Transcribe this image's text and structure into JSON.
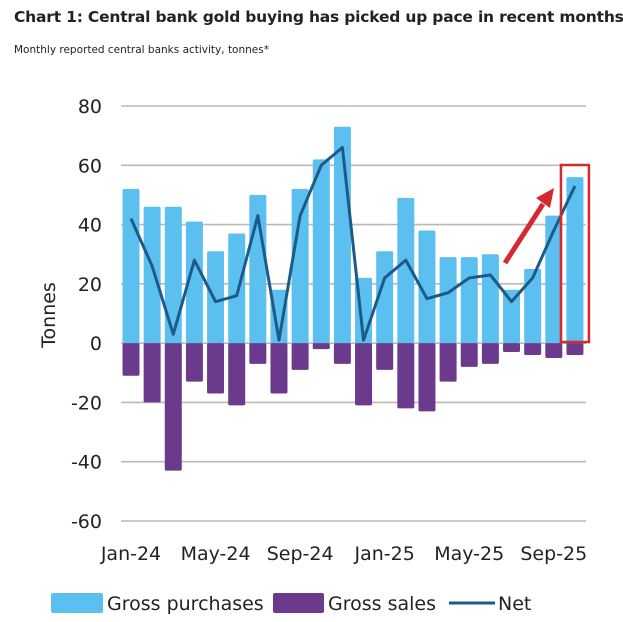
{
  "chart_data": {
    "type": "bar",
    "title": "Chart 1: Central bank gold buying has picked up pace in recent months",
    "subtitle": "Monthly reported central banks activity, tonnes*",
    "xlabel": "",
    "ylabel": "Tonnes",
    "ylim": [
      -60,
      80
    ],
    "yticks": [
      "80",
      "60",
      "40",
      "20",
      "0",
      "-20",
      "-40",
      "-60"
    ],
    "ytick_values": [
      80,
      60,
      40,
      20,
      0,
      -20,
      -40,
      -60
    ],
    "grid": true,
    "legend_placement": "bottom",
    "categories": [
      "Jan-24",
      "Feb-24",
      "Mar-24",
      "Apr-24",
      "May-24",
      "Jun-24",
      "Jul-24",
      "Aug-24",
      "Sep-24",
      "Oct-24",
      "Nov-24",
      "Dec-24",
      "Jan-25",
      "Feb-25",
      "Mar-25",
      "Apr-25",
      "May-25",
      "Jun-25",
      "Jul-25",
      "Aug-25",
      "Sep-25",
      "Oct-25"
    ],
    "xtick_labels": [
      "Jan-24",
      "May-24",
      "Sep-24",
      "Jan-25",
      "May-25",
      "Sep-25"
    ],
    "xtick_indices": [
      0,
      4,
      8,
      12,
      16,
      20
    ],
    "series": [
      {
        "name": "Gross purchases",
        "type": "bar",
        "color": "#5bc0ef",
        "values": [
          52,
          46,
          46,
          41,
          31,
          37,
          50,
          18,
          52,
          62,
          73,
          22,
          31,
          49,
          38,
          29,
          29,
          30,
          18,
          25,
          43,
          56
        ]
      },
      {
        "name": "Gross sales",
        "type": "bar",
        "color": "#6c3a8c",
        "values": [
          -11,
          -20,
          -43,
          -13,
          -17,
          -21,
          -7,
          -17,
          -9,
          -2,
          -7,
          -21,
          -9,
          -22,
          -23,
          -13,
          -8,
          -7,
          -3,
          -4,
          -5,
          -4
        ]
      },
      {
        "name": "Net",
        "type": "line",
        "color": "#1d5a8a",
        "values": [
          42,
          26,
          3,
          28,
          14,
          16,
          43,
          1,
          43,
          60,
          66,
          1,
          22,
          28,
          15,
          17,
          22,
          23,
          14,
          22,
          38,
          53
        ]
      }
    ],
    "annotations": {
      "highlight_color": "#d42a2f",
      "arrow": "up-right arrow pointing to latest bar",
      "highlight_box_category": "Oct-25"
    }
  }
}
